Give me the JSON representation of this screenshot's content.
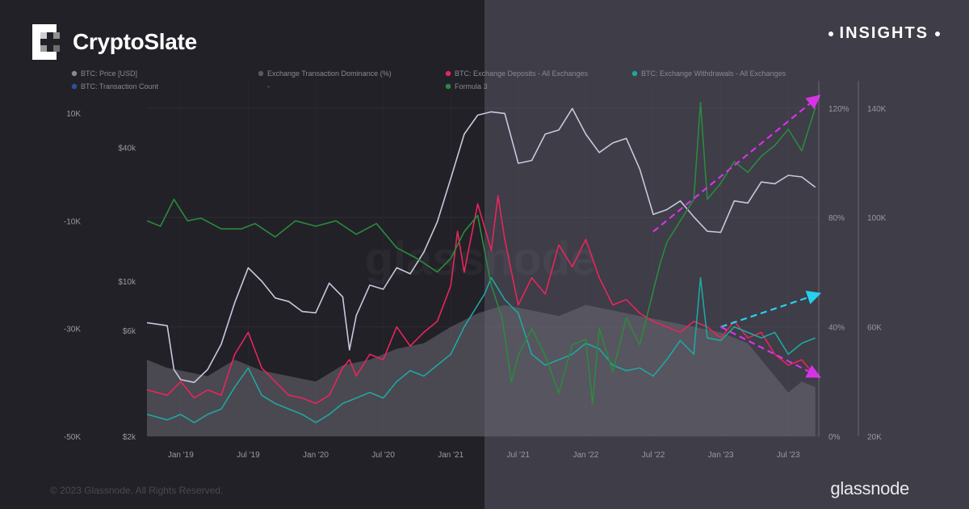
{
  "brand": {
    "title": "CryptoSlate",
    "logo_icon": "cryptoslate-logo-icon"
  },
  "badge": {
    "label": "INSIGHTS"
  },
  "footer": {
    "copyright": "© 2023 Glassnode. All Rights Reserved.",
    "provider": "glassnode"
  },
  "colors": {
    "background_left": "#222127",
    "background_right": "#3e3d48",
    "price": "#c9c7de",
    "deposits": "#e8265a",
    "withdrawals": "#1fa7a0",
    "formula": "#2b8a3e",
    "dominance_area": "#6b6a75",
    "arrow_magenta": "#d832e6",
    "arrow_cyan": "#24d2ee"
  },
  "chart_data": {
    "type": "line",
    "watermark": "glassnode",
    "legend": [
      {
        "name": "BTC: Price [USD]",
        "color": "#8a8993"
      },
      {
        "name": "Exchange Transaction Dominance (%)",
        "color": "#5a5962"
      },
      {
        "name": "BTC: Exchange Deposits - All Exchanges",
        "color": "#e8265a"
      },
      {
        "name": "BTC: Exchange Withdrawals - All Exchanges",
        "color": "#1fa7a0"
      },
      {
        "name": "BTC: Transaction Count",
        "color": "#2d4fa0"
      },
      {
        "name": "-",
        "color": "none"
      },
      {
        "name": "Formula 3",
        "color": "#2b8a3e"
      }
    ],
    "x_ticks": [
      "Jan '19",
      "Jul '19",
      "Jan '20",
      "Jul '20",
      "Jan '21",
      "Jul '21",
      "Jan '22",
      "Jul '22",
      "Jan '23",
      "Jul '23"
    ],
    "x_range": [
      2018.75,
      2023.72
    ],
    "x_tick_values": [
      2019.0,
      2019.5,
      2020.0,
      2020.5,
      2021.0,
      2021.5,
      2022.0,
      2022.5,
      2023.0,
      2023.5
    ],
    "axis_formula": {
      "ticks": [
        "10K",
        "-10K",
        "-30K",
        "-50K"
      ],
      "values": [
        10000,
        -10000,
        -30000,
        -50000
      ],
      "range": [
        -50000,
        16000
      ]
    },
    "axis_price": {
      "scale": "log",
      "ticks": [
        "$40k",
        "$10k",
        "$6k",
        "$2k"
      ],
      "values": [
        40000,
        10000,
        6000,
        2000
      ],
      "range": [
        2000,
        80000
      ]
    },
    "axis_dominance": {
      "ticks": [
        "120%",
        "80%",
        "40%",
        "0%"
      ],
      "values": [
        120,
        80,
        40,
        0
      ],
      "range": [
        0,
        130
      ]
    },
    "axis_count": {
      "ticks": [
        "140K",
        "100K",
        "60K",
        "20K"
      ],
      "values": [
        140000,
        100000,
        60000,
        20000
      ],
      "range": [
        20000,
        150000
      ]
    },
    "series": [
      {
        "key": "price",
        "name": "BTC: Price [USD]",
        "axis": "price",
        "x": [
          2018.75,
          2018.9,
          2018.95,
          2019.0,
          2019.1,
          2019.2,
          2019.3,
          2019.4,
          2019.5,
          2019.6,
          2019.7,
          2019.8,
          2019.9,
          2020.0,
          2020.1,
          2020.2,
          2020.25,
          2020.3,
          2020.4,
          2020.5,
          2020.6,
          2020.7,
          2020.8,
          2020.9,
          2021.0,
          2021.1,
          2021.2,
          2021.3,
          2021.4,
          2021.5,
          2021.6,
          2021.7,
          2021.8,
          2021.9,
          2022.0,
          2022.1,
          2022.2,
          2022.3,
          2022.4,
          2022.5,
          2022.6,
          2022.7,
          2022.8,
          2022.9,
          2023.0,
          2023.1,
          2023.2,
          2023.3,
          2023.4,
          2023.5,
          2023.6,
          2023.7
        ],
        "y": [
          6500,
          6300,
          4000,
          3600,
          3500,
          4000,
          5200,
          8000,
          11500,
          10000,
          8400,
          8100,
          7300,
          7200,
          9800,
          8500,
          4900,
          7000,
          9600,
          9200,
          11500,
          10800,
          13500,
          18500,
          29000,
          46000,
          56000,
          58000,
          57000,
          34000,
          35000,
          46000,
          48000,
          60000,
          46000,
          38000,
          42000,
          44000,
          32000,
          20000,
          21000,
          23000,
          19500,
          16800,
          16600,
          23000,
          22500,
          28000,
          27500,
          30000,
          29500,
          26500
        ]
      },
      {
        "key": "deposits",
        "name": "BTC: Exchange Deposits - All Exchanges",
        "axis": "dominance",
        "x": [
          2018.75,
          2018.9,
          2019.0,
          2019.1,
          2019.2,
          2019.3,
          2019.4,
          2019.5,
          2019.6,
          2019.7,
          2019.8,
          2019.9,
          2020.0,
          2020.1,
          2020.2,
          2020.25,
          2020.3,
          2020.4,
          2020.5,
          2020.6,
          2020.7,
          2020.8,
          2020.9,
          2021.0,
          2021.05,
          2021.1,
          2021.2,
          2021.3,
          2021.35,
          2021.4,
          2021.5,
          2021.6,
          2021.7,
          2021.8,
          2021.9,
          2022.0,
          2022.1,
          2022.2,
          2022.3,
          2022.4,
          2022.5,
          2022.6,
          2022.7,
          2022.8,
          2022.9,
          2023.0,
          2023.1,
          2023.2,
          2023.3,
          2023.4,
          2023.5,
          2023.6,
          2023.7
        ],
        "y": [
          17,
          15,
          20,
          14,
          17,
          15,
          30,
          38,
          25,
          20,
          15,
          14,
          12,
          15,
          25,
          28,
          22,
          30,
          28,
          40,
          33,
          38,
          42,
          55,
          75,
          60,
          85,
          68,
          88,
          72,
          48,
          58,
          52,
          70,
          62,
          72,
          58,
          48,
          50,
          45,
          42,
          40,
          38,
          42,
          40,
          36,
          42,
          36,
          38,
          30,
          26,
          28,
          22
        ]
      },
      {
        "key": "withdrawals",
        "name": "BTC: Exchange Withdrawals - All Exchanges",
        "axis": "dominance",
        "x": [
          2018.75,
          2018.9,
          2019.0,
          2019.1,
          2019.2,
          2019.3,
          2019.4,
          2019.5,
          2019.6,
          2019.7,
          2019.8,
          2019.9,
          2020.0,
          2020.1,
          2020.2,
          2020.3,
          2020.4,
          2020.5,
          2020.6,
          2020.7,
          2020.8,
          2020.9,
          2021.0,
          2021.1,
          2021.2,
          2021.25,
          2021.3,
          2021.4,
          2021.5,
          2021.6,
          2021.7,
          2021.8,
          2021.9,
          2022.0,
          2022.1,
          2022.2,
          2022.3,
          2022.4,
          2022.5,
          2022.6,
          2022.7,
          2022.8,
          2022.85,
          2022.9,
          2023.0,
          2023.1,
          2023.2,
          2023.3,
          2023.4,
          2023.5,
          2023.6,
          2023.7
        ],
        "y": [
          8,
          6,
          8,
          5,
          8,
          10,
          18,
          25,
          15,
          12,
          10,
          8,
          5,
          8,
          12,
          14,
          16,
          14,
          20,
          24,
          22,
          26,
          30,
          40,
          48,
          52,
          58,
          50,
          45,
          30,
          26,
          28,
          30,
          34,
          32,
          26,
          24,
          25,
          22,
          28,
          35,
          30,
          58,
          36,
          35,
          40,
          38,
          36,
          38,
          30,
          34,
          36
        ]
      },
      {
        "key": "formula",
        "name": "Formula 3",
        "axis": "formula",
        "x": [
          2018.75,
          2018.85,
          2018.95,
          2019.05,
          2019.15,
          2019.3,
          2019.45,
          2019.55,
          2019.7,
          2019.85,
          2020.0,
          2020.15,
          2020.3,
          2020.45,
          2020.6,
          2020.75,
          2020.9,
          2021.0,
          2021.1,
          2021.2,
          2021.3,
          2021.38,
          2021.45,
          2021.5,
          2021.6,
          2021.7,
          2021.8,
          2021.9,
          2022.0,
          2022.05,
          2022.1,
          2022.2,
          2022.3,
          2022.4,
          2022.5,
          2022.55,
          2022.6,
          2022.7,
          2022.8,
          2022.85,
          2022.9,
          2023.0,
          2023.1,
          2023.2,
          2023.3,
          2023.4,
          2023.5,
          2023.6,
          2023.7
        ],
        "y": [
          -10000,
          -11000,
          -6000,
          -10000,
          -9500,
          -11500,
          -11500,
          -10500,
          -13000,
          -10000,
          -11000,
          -10000,
          -12500,
          -10500,
          -15000,
          -17000,
          -19500,
          -17000,
          -12000,
          -9000,
          -22000,
          -28000,
          -40000,
          -35000,
          -30000,
          -35000,
          -42000,
          -33000,
          -32000,
          -44000,
          -30000,
          -38000,
          -28000,
          -33000,
          -23000,
          -18000,
          -14000,
          -10000,
          -6000,
          12000,
          -6000,
          -3000,
          1000,
          -1000,
          2000,
          4000,
          7000,
          3000,
          11000
        ]
      },
      {
        "key": "dominance",
        "name": "Exchange Transaction Dominance (%)",
        "axis": "dominance",
        "style": "area",
        "x": [
          2018.75,
          2018.9,
          2019.0,
          2019.2,
          2019.4,
          2019.6,
          2019.8,
          2020.0,
          2020.2,
          2020.4,
          2020.6,
          2020.8,
          2021.0,
          2021.2,
          2021.4,
          2021.6,
          2021.8,
          2022.0,
          2022.2,
          2022.4,
          2022.6,
          2022.8,
          2023.0,
          2023.2,
          2023.3,
          2023.4,
          2023.5,
          2023.6,
          2023.7
        ],
        "y": [
          28,
          25,
          24,
          22,
          28,
          24,
          22,
          20,
          26,
          28,
          32,
          34,
          40,
          45,
          48,
          46,
          44,
          48,
          46,
          44,
          42,
          40,
          38,
          34,
          28,
          22,
          16,
          20,
          18
        ]
      }
    ],
    "annotations": [
      {
        "type": "arrow",
        "color": "magenta",
        "from": [
          2022.5,
          -12000
        ],
        "to": [
          2023.72,
          13000
        ],
        "axis": "formula"
      },
      {
        "type": "arrow",
        "color": "cyan",
        "from": [
          2023.0,
          40
        ],
        "to": [
          2023.72,
          52
        ],
        "axis": "dominance"
      },
      {
        "type": "arrow",
        "color": "magenta",
        "from": [
          2023.0,
          40
        ],
        "to": [
          2023.72,
          22
        ],
        "axis": "dominance"
      }
    ]
  }
}
